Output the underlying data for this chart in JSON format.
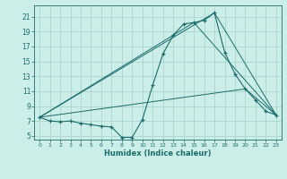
{
  "title": "",
  "xlabel": "Humidex (Indice chaleur)",
  "bg_color": "#cceee8",
  "grid_color": "#aad4ce",
  "line_color": "#1a6b6b",
  "xlim": [
    -0.5,
    23.5
  ],
  "ylim": [
    4.5,
    22.5
  ],
  "xticks": [
    0,
    1,
    2,
    3,
    4,
    5,
    6,
    7,
    8,
    9,
    10,
    11,
    12,
    13,
    14,
    15,
    16,
    17,
    18,
    19,
    20,
    21,
    22,
    23
  ],
  "yticks": [
    5,
    7,
    9,
    11,
    13,
    15,
    17,
    19,
    21
  ],
  "series_main": {
    "x": [
      0,
      1,
      2,
      3,
      4,
      5,
      6,
      7,
      8,
      9,
      10,
      11,
      12,
      13,
      14,
      15,
      16,
      17,
      18,
      19,
      20,
      21,
      22,
      23
    ],
    "y": [
      7.5,
      7.0,
      6.9,
      7.0,
      6.7,
      6.5,
      6.3,
      6.2,
      4.8,
      4.8,
      7.2,
      11.8,
      16.0,
      18.5,
      20.0,
      20.2,
      20.5,
      21.5,
      16.2,
      13.3,
      11.3,
      9.8,
      8.3,
      7.8
    ]
  },
  "series_lines": [
    {
      "x": [
        0,
        15,
        23
      ],
      "y": [
        7.5,
        20.2,
        7.8
      ]
    },
    {
      "x": [
        0,
        17,
        23
      ],
      "y": [
        7.5,
        21.5,
        7.8
      ]
    },
    {
      "x": [
        0,
        20,
        23
      ],
      "y": [
        7.5,
        11.3,
        7.8
      ]
    }
  ]
}
